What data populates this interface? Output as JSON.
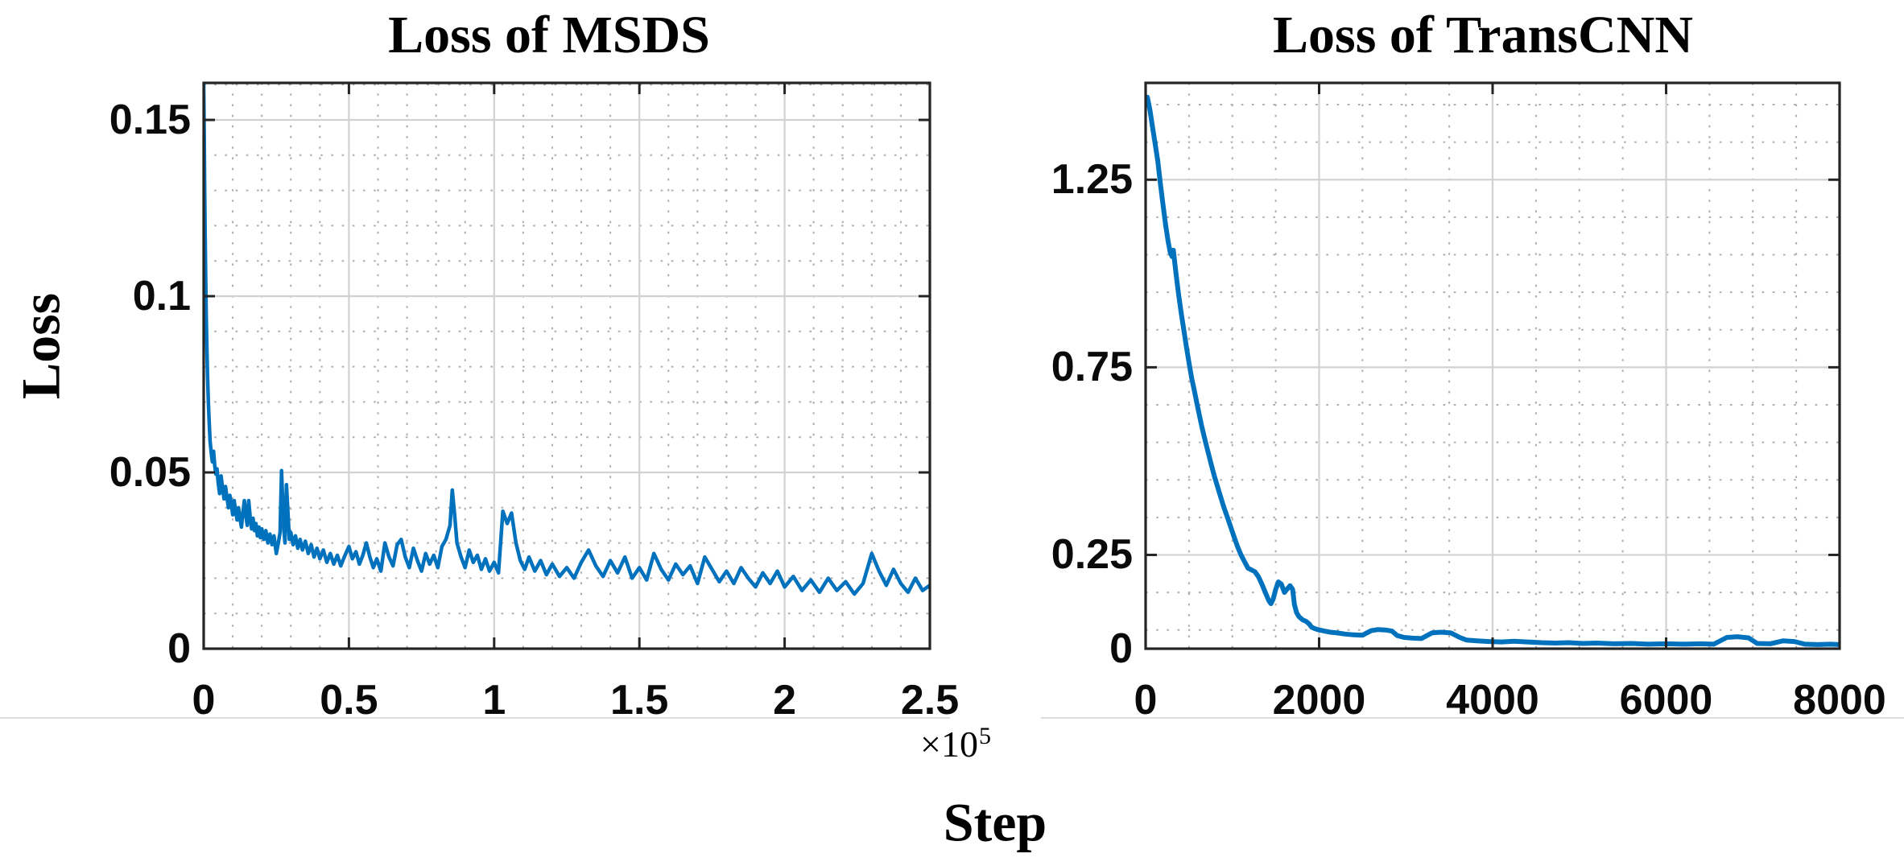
{
  "shared": {
    "ylabel": "Loss",
    "xlabel": "Step"
  },
  "colors": {
    "line": "#0072BD",
    "axis": "#242424",
    "tick": "#242424",
    "grid_major": "#d2d2d2",
    "grid_minor": "#adadad",
    "text": "#000000",
    "panel_rule": "#dcdcdc",
    "background": "#ffffff"
  },
  "chart_data": [
    {
      "id": "msds",
      "type": "line",
      "title": "Loss of MSDS",
      "ylabel": "Loss",
      "xlabel": "Step",
      "x_offset_label": {
        "base": "×10",
        "exponent": "5"
      },
      "x_units": "steps (×10^5)",
      "xlim": [
        0,
        2.5
      ],
      "ylim": [
        0,
        0.1605
      ],
      "x_ticks": [
        0,
        0.5,
        1,
        1.5,
        2,
        2.5
      ],
      "x_tick_labels": [
        "0",
        "0.5",
        "1",
        "1.5",
        "2",
        "2.5"
      ],
      "y_ticks": [
        0,
        0.05,
        0.1,
        0.15
      ],
      "y_tick_labels": [
        "0",
        "0.05",
        "0.1",
        "0.15"
      ],
      "x_minor_step": 0.1,
      "y_minor_step": 0.01,
      "grid": "major solid + dotted minor",
      "legend": "none",
      "line_width": 4.5,
      "points": [
        [
          0,
          0.16
        ],
        [
          0.002,
          0.145
        ],
        [
          0.003,
          0.133
        ],
        [
          0.005,
          0.118
        ],
        [
          0.007,
          0.105
        ],
        [
          0.009,
          0.094
        ],
        [
          0.011,
          0.085
        ],
        [
          0.013,
          0.078
        ],
        [
          0.016,
          0.07
        ],
        [
          0.019,
          0.064
        ],
        [
          0.022,
          0.059
        ],
        [
          0.026,
          0.0555
        ],
        [
          0.03,
          0.053
        ],
        [
          0.034,
          0.056
        ],
        [
          0.038,
          0.052
        ],
        [
          0.042,
          0.0495
        ],
        [
          0.046,
          0.051
        ],
        [
          0.05,
          0.047
        ],
        [
          0.055,
          0.044
        ],
        [
          0.06,
          0.049
        ],
        [
          0.065,
          0.0455
        ],
        [
          0.07,
          0.0425
        ],
        [
          0.075,
          0.046
        ],
        [
          0.08,
          0.043
        ],
        [
          0.085,
          0.04
        ],
        [
          0.09,
          0.0435
        ],
        [
          0.095,
          0.041
        ],
        [
          0.1,
          0.038
        ],
        [
          0.105,
          0.042
        ],
        [
          0.11,
          0.039
        ],
        [
          0.115,
          0.0365
        ],
        [
          0.12,
          0.04
        ],
        [
          0.125,
          0.037
        ],
        [
          0.13,
          0.0345
        ],
        [
          0.135,
          0.0385
        ],
        [
          0.14,
          0.042
        ],
        [
          0.145,
          0.038
        ],
        [
          0.15,
          0.035
        ],
        [
          0.155,
          0.042
        ],
        [
          0.16,
          0.0375
        ],
        [
          0.165,
          0.034
        ],
        [
          0.17,
          0.037
        ],
        [
          0.175,
          0.0335
        ],
        [
          0.18,
          0.0355
        ],
        [
          0.185,
          0.032
        ],
        [
          0.19,
          0.0345
        ],
        [
          0.195,
          0.0315
        ],
        [
          0.2,
          0.034
        ],
        [
          0.207,
          0.031
        ],
        [
          0.214,
          0.0335
        ],
        [
          0.221,
          0.03
        ],
        [
          0.228,
          0.0325
        ],
        [
          0.235,
          0.0295
        ],
        [
          0.242,
          0.032
        ],
        [
          0.25,
          0.027
        ],
        [
          0.257,
          0.03
        ],
        [
          0.263,
          0.033
        ],
        [
          0.268,
          0.0505
        ],
        [
          0.272,
          0.042
        ],
        [
          0.276,
          0.034
        ],
        [
          0.28,
          0.03
        ],
        [
          0.285,
          0.0465
        ],
        [
          0.29,
          0.039
        ],
        [
          0.295,
          0.031
        ],
        [
          0.3,
          0.033
        ],
        [
          0.308,
          0.0295
        ],
        [
          0.316,
          0.032
        ],
        [
          0.324,
          0.0285
        ],
        [
          0.332,
          0.031
        ],
        [
          0.34,
          0.028
        ],
        [
          0.35,
          0.0305
        ],
        [
          0.36,
          0.027
        ],
        [
          0.37,
          0.0295
        ],
        [
          0.38,
          0.026
        ],
        [
          0.39,
          0.0285
        ],
        [
          0.4,
          0.0255
        ],
        [
          0.412,
          0.028
        ],
        [
          0.424,
          0.0245
        ],
        [
          0.436,
          0.027
        ],
        [
          0.448,
          0.024
        ],
        [
          0.46,
          0.0265
        ],
        [
          0.472,
          0.0235
        ],
        [
          0.484,
          0.026
        ],
        [
          0.5,
          0.029
        ],
        [
          0.512,
          0.0255
        ],
        [
          0.524,
          0.0275
        ],
        [
          0.536,
          0.024
        ],
        [
          0.548,
          0.0265
        ],
        [
          0.56,
          0.03
        ],
        [
          0.572,
          0.026
        ],
        [
          0.584,
          0.023
        ],
        [
          0.596,
          0.0255
        ],
        [
          0.61,
          0.022
        ],
        [
          0.624,
          0.03
        ],
        [
          0.638,
          0.026
        ],
        [
          0.652,
          0.0235
        ],
        [
          0.666,
          0.0295
        ],
        [
          0.68,
          0.031
        ],
        [
          0.694,
          0.026
        ],
        [
          0.708,
          0.023
        ],
        [
          0.722,
          0.0285
        ],
        [
          0.736,
          0.025
        ],
        [
          0.75,
          0.022
        ],
        [
          0.764,
          0.027
        ],
        [
          0.778,
          0.024
        ],
        [
          0.792,
          0.0265
        ],
        [
          0.806,
          0.023
        ],
        [
          0.82,
          0.029
        ],
        [
          0.834,
          0.031
        ],
        [
          0.848,
          0.035
        ],
        [
          0.856,
          0.045
        ],
        [
          0.864,
          0.038
        ],
        [
          0.872,
          0.03
        ],
        [
          0.886,
          0.026
        ],
        [
          0.9,
          0.023
        ],
        [
          0.914,
          0.028
        ],
        [
          0.928,
          0.0245
        ],
        [
          0.942,
          0.0265
        ],
        [
          0.956,
          0.0225
        ],
        [
          0.97,
          0.0255
        ],
        [
          0.984,
          0.022
        ],
        [
          1.0,
          0.0245
        ],
        [
          1.015,
          0.0215
        ],
        [
          1.03,
          0.039
        ],
        [
          1.045,
          0.0355
        ],
        [
          1.06,
          0.0385
        ],
        [
          1.075,
          0.03
        ],
        [
          1.09,
          0.025
        ],
        [
          1.105,
          0.0225
        ],
        [
          1.12,
          0.026
        ],
        [
          1.14,
          0.022
        ],
        [
          1.16,
          0.025
        ],
        [
          1.18,
          0.021
        ],
        [
          1.2,
          0.024
        ],
        [
          1.225,
          0.0205
        ],
        [
          1.25,
          0.023
        ],
        [
          1.275,
          0.02
        ],
        [
          1.3,
          0.0245
        ],
        [
          1.325,
          0.028
        ],
        [
          1.35,
          0.0235
        ],
        [
          1.375,
          0.0205
        ],
        [
          1.4,
          0.025
        ],
        [
          1.425,
          0.0215
        ],
        [
          1.45,
          0.026
        ],
        [
          1.475,
          0.02
        ],
        [
          1.5,
          0.023
        ],
        [
          1.525,
          0.0195
        ],
        [
          1.55,
          0.027
        ],
        [
          1.575,
          0.0225
        ],
        [
          1.6,
          0.0195
        ],
        [
          1.625,
          0.024
        ],
        [
          1.65,
          0.021
        ],
        [
          1.675,
          0.0235
        ],
        [
          1.7,
          0.0185
        ],
        [
          1.725,
          0.026
        ],
        [
          1.75,
          0.0225
        ],
        [
          1.775,
          0.019
        ],
        [
          1.8,
          0.022
        ],
        [
          1.825,
          0.0185
        ],
        [
          1.85,
          0.023
        ],
        [
          1.875,
          0.02
        ],
        [
          1.9,
          0.0175
        ],
        [
          1.925,
          0.0215
        ],
        [
          1.95,
          0.0185
        ],
        [
          1.975,
          0.022
        ],
        [
          2.0,
          0.0175
        ],
        [
          2.03,
          0.0205
        ],
        [
          2.06,
          0.0165
        ],
        [
          2.09,
          0.0195
        ],
        [
          2.12,
          0.016
        ],
        [
          2.15,
          0.02
        ],
        [
          2.18,
          0.0165
        ],
        [
          2.21,
          0.019
        ],
        [
          2.24,
          0.0155
        ],
        [
          2.27,
          0.0185
        ],
        [
          2.3,
          0.027
        ],
        [
          2.325,
          0.022
        ],
        [
          2.35,
          0.018
        ],
        [
          2.375,
          0.0225
        ],
        [
          2.4,
          0.0185
        ],
        [
          2.425,
          0.016
        ],
        [
          2.45,
          0.02
        ],
        [
          2.475,
          0.0165
        ],
        [
          2.5,
          0.018
        ]
      ]
    },
    {
      "id": "transcnn",
      "type": "line",
      "title": "Loss of TransCNN",
      "ylabel": "Loss",
      "xlabel": "Step",
      "x_units": "steps",
      "xlim": [
        0,
        8000
      ],
      "ylim": [
        0,
        1.508
      ],
      "x_ticks": [
        0,
        2000,
        4000,
        6000,
        8000
      ],
      "x_tick_labels": [
        "0",
        "2000",
        "4000",
        "6000",
        "8000"
      ],
      "y_ticks": [
        0,
        0.25,
        0.75,
        1.25
      ],
      "y_tick_labels": [
        "0",
        "0.25",
        "0.75",
        "1.25"
      ],
      "x_minor_step": 500,
      "y_minor_step": 0.1,
      "y_minor_phase": 0.05,
      "grid": "major solid + dotted minor",
      "legend": "none",
      "line_width": 6,
      "points": [
        [
          20,
          1.47
        ],
        [
          50,
          1.435
        ],
        [
          80,
          1.39
        ],
        [
          110,
          1.345
        ],
        [
          140,
          1.3
        ],
        [
          170,
          1.24
        ],
        [
          200,
          1.185
        ],
        [
          230,
          1.13
        ],
        [
          260,
          1.085
        ],
        [
          285,
          1.055
        ],
        [
          305,
          1.045
        ],
        [
          320,
          1.062
        ],
        [
          335,
          1.03
        ],
        [
          355,
          0.99
        ],
        [
          380,
          0.945
        ],
        [
          410,
          0.895
        ],
        [
          440,
          0.85
        ],
        [
          470,
          0.805
        ],
        [
          500,
          0.762
        ],
        [
          530,
          0.722
        ],
        [
          560,
          0.69
        ],
        [
          590,
          0.655
        ],
        [
          620,
          0.622
        ],
        [
          650,
          0.59
        ],
        [
          685,
          0.556
        ],
        [
          720,
          0.524
        ],
        [
          755,
          0.492
        ],
        [
          790,
          0.462
        ],
        [
          825,
          0.435
        ],
        [
          860,
          0.408
        ],
        [
          900,
          0.378
        ],
        [
          940,
          0.352
        ],
        [
          980,
          0.325
        ],
        [
          1020,
          0.298
        ],
        [
          1060,
          0.272
        ],
        [
          1100,
          0.25
        ],
        [
          1140,
          0.232
        ],
        [
          1180,
          0.215
        ],
        [
          1220,
          0.21
        ],
        [
          1260,
          0.205
        ],
        [
          1300,
          0.192
        ],
        [
          1340,
          0.172
        ],
        [
          1380,
          0.15
        ],
        [
          1420,
          0.128
        ],
        [
          1445,
          0.12
        ],
        [
          1470,
          0.132
        ],
        [
          1500,
          0.158
        ],
        [
          1530,
          0.178
        ],
        [
          1565,
          0.172
        ],
        [
          1600,
          0.15
        ],
        [
          1635,
          0.16
        ],
        [
          1665,
          0.168
        ],
        [
          1695,
          0.158
        ],
        [
          1715,
          0.118
        ],
        [
          1740,
          0.096
        ],
        [
          1770,
          0.085
        ],
        [
          1810,
          0.077
        ],
        [
          1850,
          0.073
        ],
        [
          1885,
          0.066
        ],
        [
          1915,
          0.057
        ],
        [
          1955,
          0.053
        ],
        [
          2000,
          0.05
        ],
        [
          2060,
          0.047
        ],
        [
          2130,
          0.044
        ],
        [
          2210,
          0.042
        ],
        [
          2300,
          0.039
        ],
        [
          2400,
          0.037
        ],
        [
          2500,
          0.036
        ],
        [
          2600,
          0.048
        ],
        [
          2680,
          0.051
        ],
        [
          2760,
          0.05
        ],
        [
          2840,
          0.047
        ],
        [
          2900,
          0.035
        ],
        [
          2980,
          0.03
        ],
        [
          3080,
          0.028
        ],
        [
          3180,
          0.027
        ],
        [
          3300,
          0.042
        ],
        [
          3400,
          0.044
        ],
        [
          3520,
          0.042
        ],
        [
          3620,
          0.03
        ],
        [
          3700,
          0.023
        ],
        [
          3820,
          0.021
        ],
        [
          3960,
          0.019
        ],
        [
          4100,
          0.018
        ],
        [
          4250,
          0.02
        ],
        [
          4400,
          0.018
        ],
        [
          4560,
          0.016
        ],
        [
          4720,
          0.015
        ],
        [
          4880,
          0.016
        ],
        [
          5040,
          0.014
        ],
        [
          5200,
          0.015
        ],
        [
          5400,
          0.013
        ],
        [
          5600,
          0.014
        ],
        [
          5800,
          0.012
        ],
        [
          6000,
          0.013
        ],
        [
          6200,
          0.012
        ],
        [
          6400,
          0.013
        ],
        [
          6550,
          0.012
        ],
        [
          6700,
          0.03
        ],
        [
          6820,
          0.032
        ],
        [
          6950,
          0.029
        ],
        [
          7050,
          0.014
        ],
        [
          7200,
          0.013
        ],
        [
          7350,
          0.021
        ],
        [
          7480,
          0.019
        ],
        [
          7600,
          0.012
        ],
        [
          7750,
          0.011
        ],
        [
          7900,
          0.012
        ],
        [
          8000,
          0.011
        ]
      ]
    }
  ]
}
